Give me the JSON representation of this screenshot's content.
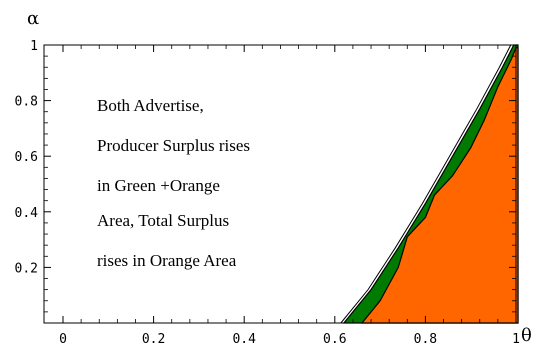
{
  "chart_data": {
    "type": "area",
    "xlabel": "θ",
    "ylabel": "α",
    "xlim": [
      0,
      1
    ],
    "ylim": [
      0,
      1
    ],
    "x_ticks": [
      "0",
      "0.2",
      "0.4",
      "0.6",
      "0.8",
      "1"
    ],
    "y_ticks": [
      "0.2",
      "0.4",
      "0.6",
      "0.8",
      "1"
    ],
    "grid": false,
    "annotation": [
      "Both Advertise,",
      "Producer Surplus rises",
      "in Green +Orange",
      "Area, Total Surplus",
      "rises in Orange Area"
    ],
    "series": [
      {
        "name": "Green",
        "color": "#007a00",
        "left_boundary": [
          {
            "x": 0.62,
            "y": 0.0
          },
          {
            "x": 0.68,
            "y": 0.12
          },
          {
            "x": 0.74,
            "y": 0.27
          },
          {
            "x": 0.8,
            "y": 0.43
          },
          {
            "x": 0.86,
            "y": 0.6
          },
          {
            "x": 0.92,
            "y": 0.77
          },
          {
            "x": 0.97,
            "y": 0.92
          },
          {
            "x": 0.995,
            "y": 1.0
          }
        ]
      },
      {
        "name": "Orange",
        "color": "#ff6600",
        "left_boundary": [
          {
            "x": 0.66,
            "y": 0.0
          },
          {
            "x": 0.7,
            "y": 0.08
          },
          {
            "x": 0.74,
            "y": 0.2
          },
          {
            "x": 0.76,
            "y": 0.31
          },
          {
            "x": 0.8,
            "y": 0.38
          },
          {
            "x": 0.82,
            "y": 0.46
          },
          {
            "x": 0.86,
            "y": 0.53
          },
          {
            "x": 0.9,
            "y": 0.63
          },
          {
            "x": 0.93,
            "y": 0.73
          },
          {
            "x": 0.96,
            "y": 0.85
          },
          {
            "x": 0.99,
            "y": 0.95
          },
          {
            "x": 1.0,
            "y": 0.99
          }
        ]
      }
    ]
  }
}
